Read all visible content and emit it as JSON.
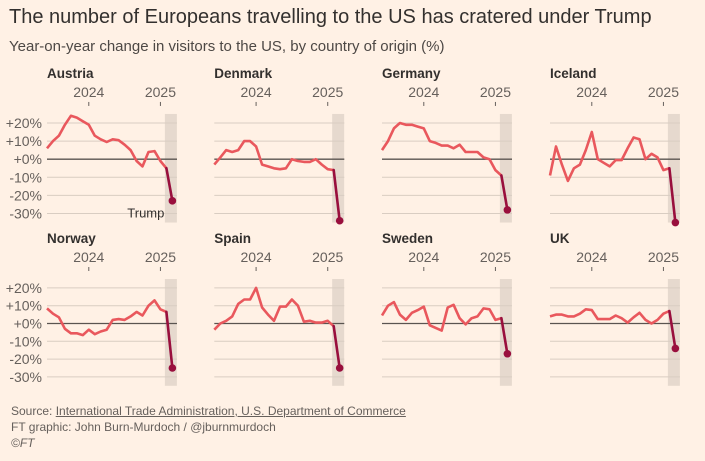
{
  "header": {
    "title": "The number of Europeans travelling to the US has cratered under Trump",
    "subtitle": "Year-on-year change in visitors to the US, by country of origin (%)"
  },
  "chart_data": {
    "type": "line",
    "title": "The number of Europeans travelling to the US has cratered under Trump",
    "subtitle": "Year-on-year change in visitors to the US, by country of origin (%)",
    "x": [
      "2023-06",
      "2023-07",
      "2023-08",
      "2023-09",
      "2023-10",
      "2023-11",
      "2023-12",
      "2024-01",
      "2024-02",
      "2024-03",
      "2024-04",
      "2024-05",
      "2024-06",
      "2024-07",
      "2024-08",
      "2024-09",
      "2024-10",
      "2024-11",
      "2024-12",
      "2025-01",
      "2025-02",
      "2025-03"
    ],
    "x_ticks": [
      {
        "label": "2024",
        "at": "2024-01"
      },
      {
        "label": "2025",
        "at": "2025-01"
      }
    ],
    "ylim": [
      -35,
      25
    ],
    "y_ticks": [
      20,
      10,
      0,
      -10,
      -20,
      -30
    ],
    "y_tick_labels": [
      "+20%",
      "+10%",
      "+0%",
      "-10%",
      "-20%",
      "-30%"
    ],
    "highlight_period": "Trump",
    "annotation": "Trump",
    "colors": {
      "line": "#e9585d",
      "trump": "#990f3d",
      "shade": "#e6d9ce",
      "grid": "#d9cdc2",
      "zero": "#5a5450"
    },
    "series": [
      {
        "name": "Austria",
        "values": [
          6,
          10,
          13,
          19,
          24,
          23,
          21,
          19,
          13,
          11,
          9.5,
          11,
          10.5,
          8,
          5,
          -1,
          -4,
          4,
          4.5,
          -1,
          -5,
          -23
        ]
      },
      {
        "name": "Denmark",
        "values": [
          -3,
          1,
          5,
          4,
          5,
          10,
          10,
          7,
          -3,
          -4,
          -5,
          -5.5,
          -5,
          0,
          -1,
          -1.5,
          -1.5,
          0,
          -3,
          -5.5,
          -6,
          -34
        ]
      },
      {
        "name": "Germany",
        "values": [
          5,
          10,
          17,
          20,
          19,
          19,
          18,
          17,
          10,
          9,
          7.5,
          7.5,
          6,
          8,
          4,
          4,
          4,
          1,
          0,
          -6,
          -9,
          -28
        ]
      },
      {
        "name": "Iceland",
        "values": [
          -9,
          7,
          -3,
          -12,
          -5,
          -3,
          5,
          15,
          0,
          -2,
          -4,
          -0.5,
          -0.5,
          6,
          12,
          11,
          0,
          3,
          1,
          -6,
          -5,
          -35
        ]
      },
      {
        "name": "Norway",
        "values": [
          8.5,
          5.5,
          3.5,
          -3,
          -5.5,
          -5.5,
          -6.5,
          -3.5,
          -6,
          -4.5,
          -3.5,
          2,
          2.5,
          2,
          4,
          6.5,
          4.5,
          10,
          13,
          8,
          6.5,
          -25
        ]
      },
      {
        "name": "Spain",
        "values": [
          -3.5,
          0,
          1.5,
          4,
          11,
          13.5,
          13.5,
          20,
          9,
          5,
          1.5,
          9.5,
          9.5,
          13.5,
          10,
          1,
          1.5,
          0.5,
          0.5,
          1.5,
          -1.5,
          -25
        ]
      },
      {
        "name": "Sweden",
        "values": [
          4.5,
          10,
          12,
          5,
          2,
          6,
          7.5,
          9.5,
          -1,
          -2.5,
          -4,
          9,
          10.5,
          3,
          -0.5,
          3,
          4,
          8.5,
          8,
          2,
          3,
          -17
        ]
      },
      {
        "name": "UK",
        "values": [
          4,
          5,
          5,
          4,
          4,
          5.5,
          8,
          7.5,
          2.5,
          2.5,
          2.5,
          4.5,
          3,
          0.5,
          3.5,
          6,
          2,
          0,
          2,
          5.5,
          7,
          -14
        ]
      }
    ]
  },
  "footer": {
    "source_prefix": "Source: ",
    "source_link": "International Trade Administration, U.S. Department of Commerce",
    "credit": "FT graphic: John Burn-Murdoch / @jburnmurdoch",
    "copyright": "©FT"
  }
}
